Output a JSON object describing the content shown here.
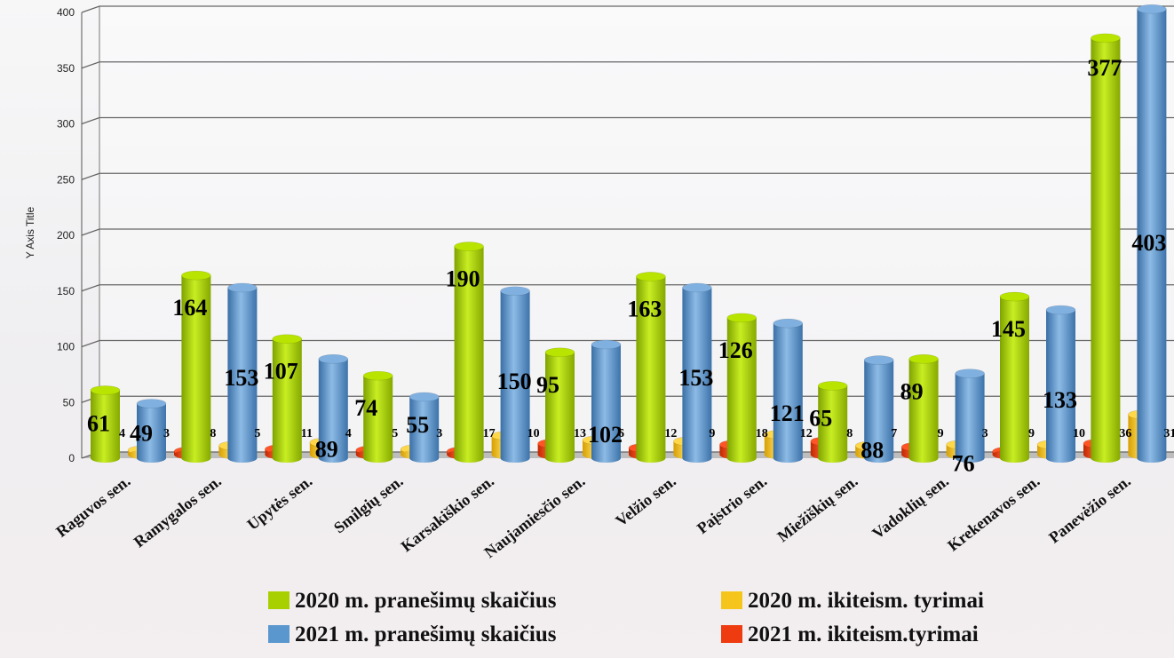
{
  "chart_data": {
    "type": "bar",
    "title": "",
    "xlabel": "",
    "ylabel": "Y Axis Title",
    "ylim": [
      0,
      400
    ],
    "yticks": [
      0,
      50,
      100,
      150,
      200,
      250,
      300,
      350,
      400
    ],
    "grid": true,
    "legend_position": "bottom",
    "categories": [
      "Raguvos sen.",
      "Ramygalos sen.",
      "Upytės sen.",
      "Smilgių sen.",
      "Karsakiškio sen.",
      "Naujamiesčio sen.",
      "Velžio sen.",
      "Paįstrio sen.",
      "Miežiškių sen.",
      "Vadoklių sen.",
      "Krekenavos sen.",
      "Panevėžio sen."
    ],
    "series": [
      {
        "name": "2020 m. pranešimų skaičius",
        "color": "#a8d000",
        "values": [
          61,
          164,
          107,
          74,
          190,
          95,
          163,
          126,
          65,
          89,
          145,
          377
        ]
      },
      {
        "name": "2020 m. ikiteism. tyrimai",
        "color": "#f6c51c",
        "values": [
          4,
          8,
          11,
          5,
          17,
          13,
          12,
          18,
          8,
          9,
          9,
          36
        ]
      },
      {
        "name": "2021 m. pranešimų skaičius",
        "color": "#5b97cf",
        "values": [
          49,
          153,
          89,
          55,
          150,
          102,
          153,
          121,
          88,
          76,
          133,
          403
        ]
      },
      {
        "name": "2021 m. ikiteism.tyrimai",
        "color": "#ee3b10",
        "values": [
          3,
          5,
          4,
          3,
          10,
          6,
          9,
          12,
          7,
          3,
          10,
          31
        ]
      }
    ]
  }
}
